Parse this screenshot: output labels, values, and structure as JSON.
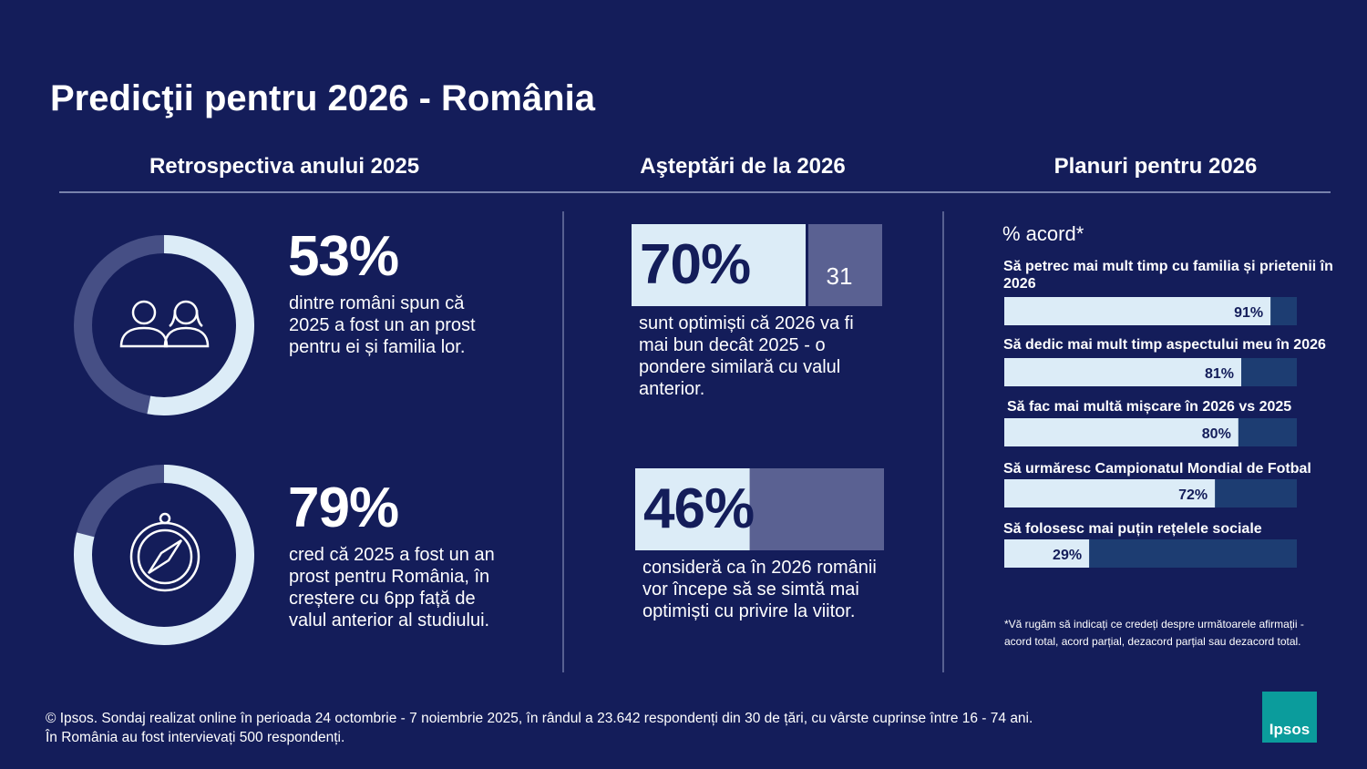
{
  "title": "Predicţii pentru 2026 - România",
  "retrospective": {
    "heading": "Retrospectiva anului 2025",
    "items": [
      {
        "value": 53,
        "value_label": "53%",
        "text": "dintre români spun că 2025 a fost un an prost pentru ei și familia lor."
      },
      {
        "value": 79,
        "value_label": "79%",
        "text": "cred că 2025 a fost un an prost pentru România, în creștere cu 6pp față de valul anterior al studiului."
      }
    ]
  },
  "expectations": {
    "heading": "Aşteptări de la 2026",
    "items": [
      {
        "value": 70,
        "value_label": "70%",
        "icon_text": "31",
        "text": "sunt optimiști că 2026 va fi mai bun decât 2025 - o pondere similară cu valul anterior."
      },
      {
        "value": 46,
        "value_label": "46%",
        "text": "consideră ca în 2026 românii vor începe să se simtă mai optimiști cu privire la viitor."
      }
    ]
  },
  "plans": {
    "heading": "Planuri pentru 2026",
    "subtitle": "% acord*",
    "items": [
      {
        "label": "Să petrec mai mult timp cu familia și prietenii în 2026",
        "value": 91,
        "value_label": "91%"
      },
      {
        "label": "Să dedic mai mult timp aspectului meu în 2026",
        "value": 81,
        "value_label": "81%"
      },
      {
        "label": "Să fac mai multă mișcare în 2026 vs 2025",
        "value": 80,
        "value_label": "80%"
      },
      {
        "label": "Să urmăresc Campionatul Mondial de Fotbal",
        "value": 72,
        "value_label": "72%"
      },
      {
        "label": "Să folosesc mai puțin rețelele sociale",
        "value": 29,
        "value_label": "29%"
      }
    ],
    "footnote": "*Vă rugăm să indicați ce credeți despre următoarele afirmații - acord total, acord parțial, dezacord parțial sau dezacord total."
  },
  "footer": [
    "© Ipsos. Sondaj realizat online în perioada 24 octombrie - 7 noiembrie 2025, în rândul a 23.642 respondenți din 30 de țări, cu vârste cuprinse între 16 - 74 ani.",
    "În România au fost intervievați 500 respondenți."
  ],
  "logo": "Ipsos"
}
